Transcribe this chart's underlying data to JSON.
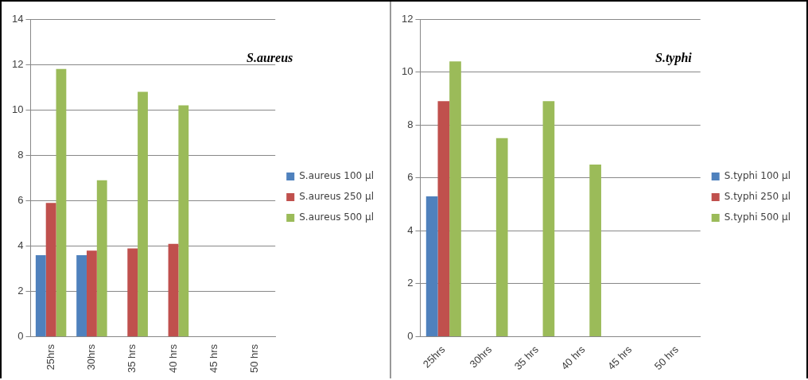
{
  "chart_data": [
    {
      "type": "bar",
      "title": "S.aureus",
      "categories": [
        "25hrs",
        "30hrs",
        "35 hrs",
        "40 hrs",
        "45 hrs",
        "50 hrs"
      ],
      "series": [
        {
          "name": "S.aureus 100 µl",
          "color": "#4f81bd",
          "values": [
            3.6,
            3.6,
            null,
            null,
            null,
            null
          ]
        },
        {
          "name": "S.aureus 250 µl",
          "color": "#c0504d",
          "values": [
            5.9,
            3.8,
            3.9,
            4.1,
            null,
            null
          ]
        },
        {
          "name": "S.aureus 500 µl",
          "color": "#9bbb59",
          "values": [
            11.8,
            6.9,
            10.8,
            10.2,
            null,
            null
          ]
        }
      ],
      "ylim": [
        0,
        14
      ],
      "yticks": [
        0,
        2,
        4,
        6,
        8,
        10,
        12,
        14
      ],
      "grid": "y",
      "legend": "right"
    },
    {
      "type": "bar",
      "title": "S.typhi",
      "categories": [
        "25hrs",
        "30hrs",
        "35 hrs",
        "40 hrs",
        "45 hrs",
        "50 hrs"
      ],
      "series": [
        {
          "name": "S.typhi 100 µl",
          "color": "#4f81bd",
          "values": [
            5.3,
            null,
            null,
            null,
            null,
            null
          ]
        },
        {
          "name": "S.typhi 250 µl",
          "color": "#c0504d",
          "values": [
            8.9,
            null,
            null,
            null,
            null,
            null
          ]
        },
        {
          "name": "S.typhi 500 µl",
          "color": "#9bbb59",
          "values": [
            10.4,
            7.5,
            8.9,
            6.5,
            null,
            null
          ]
        }
      ],
      "ylim": [
        0,
        12
      ],
      "yticks": [
        0,
        2,
        4,
        6,
        8,
        10,
        12
      ],
      "grid": "y",
      "legend": "right"
    }
  ]
}
